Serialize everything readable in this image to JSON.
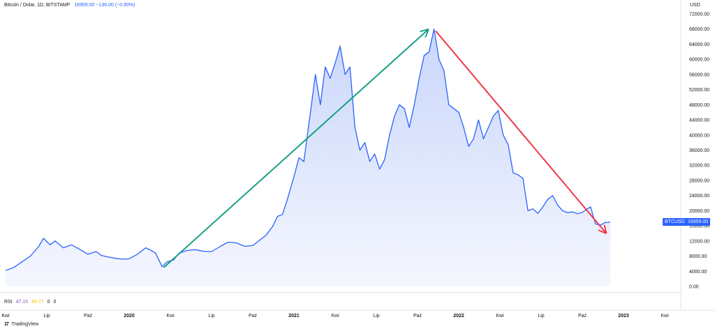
{
  "header": {
    "symbol": "Bitcoin / Dolar, 1D, BITSTAMP",
    "price": "16959.00 −136.00 (−0.80%)"
  },
  "currency": "USD",
  "rsi": {
    "label": "RSI",
    "value1": "47.15",
    "value2": "40.77",
    "value3": "0",
    "value4": "0"
  },
  "badge": {
    "symbol": "BTCUSD",
    "value": "16959.00"
  },
  "brand": {
    "logo": "17",
    "name": "TradingView"
  },
  "colors": {
    "line": "#2962ff",
    "area_top": "#c9d6fb",
    "area_bottom": "#f5f7fe",
    "arrow_up": "#16a085",
    "arrow_down": "#f23645"
  },
  "chart_data": {
    "type": "area",
    "title": "Bitcoin / Dolar, 1D, BITSTAMP",
    "xlabel": "",
    "ylabel": "",
    "ylim": [
      0,
      72000
    ],
    "y_ticks": [
      "72000.00",
      "68000.00",
      "64000.00",
      "60000.00",
      "56000.00",
      "52000.00",
      "48000.00",
      "44000.00",
      "40000.00",
      "36000.00",
      "32000.00",
      "28000.00",
      "24000.00",
      "20000.00",
      "16000.00",
      "12000.00",
      "8000.00",
      "4000.00",
      "0.00"
    ],
    "x_ticks": [
      {
        "label": "Kwi",
        "t": 2019.25,
        "major": false
      },
      {
        "label": "Lip",
        "t": 2019.5,
        "major": false
      },
      {
        "label": "Paź",
        "t": 2019.75,
        "major": false
      },
      {
        "label": "2020",
        "t": 2020.0,
        "major": true
      },
      {
        "label": "Kwi",
        "t": 2020.25,
        "major": false
      },
      {
        "label": "Lip",
        "t": 2020.5,
        "major": false
      },
      {
        "label": "Paź",
        "t": 2020.75,
        "major": false
      },
      {
        "label": "2021",
        "t": 2021.0,
        "major": true
      },
      {
        "label": "Kwi",
        "t": 2021.25,
        "major": false
      },
      {
        "label": "Lip",
        "t": 2021.5,
        "major": false
      },
      {
        "label": "Paź",
        "t": 2021.75,
        "major": false
      },
      {
        "label": "2022",
        "t": 2022.0,
        "major": true
      },
      {
        "label": "Kwi",
        "t": 2022.25,
        "major": false
      },
      {
        "label": "Lip",
        "t": 2022.5,
        "major": false
      },
      {
        "label": "Paź",
        "t": 2022.75,
        "major": false
      },
      {
        "label": "2023",
        "t": 2023.0,
        "major": true
      },
      {
        "label": "Kwi",
        "t": 2023.25,
        "major": false
      }
    ],
    "series": [
      {
        "values": [
          [
            2019.25,
            4200
          ],
          [
            2019.3,
            5000
          ],
          [
            2019.35,
            6500
          ],
          [
            2019.4,
            8000
          ],
          [
            2019.45,
            10500
          ],
          [
            2019.48,
            12700
          ],
          [
            2019.52,
            11000
          ],
          [
            2019.55,
            12000
          ],
          [
            2019.6,
            10200
          ],
          [
            2019.65,
            11000
          ],
          [
            2019.7,
            9800
          ],
          [
            2019.75,
            8500
          ],
          [
            2019.8,
            9200
          ],
          [
            2019.83,
            8200
          ],
          [
            2019.87,
            7800
          ],
          [
            2019.92,
            7400
          ],
          [
            2019.96,
            7200
          ],
          [
            2020.0,
            7300
          ],
          [
            2020.05,
            8500
          ],
          [
            2020.1,
            10200
          ],
          [
            2020.13,
            9600
          ],
          [
            2020.16,
            8800
          ],
          [
            2020.2,
            5200
          ],
          [
            2020.23,
            6500
          ],
          [
            2020.27,
            7000
          ],
          [
            2020.3,
            8700
          ],
          [
            2020.35,
            9500
          ],
          [
            2020.4,
            9700
          ],
          [
            2020.45,
            9300
          ],
          [
            2020.5,
            9200
          ],
          [
            2020.55,
            10500
          ],
          [
            2020.6,
            11700
          ],
          [
            2020.65,
            11500
          ],
          [
            2020.7,
            10600
          ],
          [
            2020.75,
            10800
          ],
          [
            2020.8,
            12500
          ],
          [
            2020.83,
            13500
          ],
          [
            2020.87,
            15800
          ],
          [
            2020.9,
            18500
          ],
          [
            2020.93,
            19000
          ],
          [
            2020.96,
            23000
          ],
          [
            2021.0,
            29000
          ],
          [
            2021.03,
            34000
          ],
          [
            2021.06,
            33000
          ],
          [
            2021.1,
            46000
          ],
          [
            2021.13,
            56000
          ],
          [
            2021.16,
            48000
          ],
          [
            2021.19,
            58000
          ],
          [
            2021.22,
            55000
          ],
          [
            2021.25,
            59000
          ],
          [
            2021.28,
            63500
          ],
          [
            2021.31,
            56000
          ],
          [
            2021.34,
            58000
          ],
          [
            2021.37,
            42000
          ],
          [
            2021.4,
            36000
          ],
          [
            2021.43,
            38000
          ],
          [
            2021.46,
            33000
          ],
          [
            2021.49,
            35000
          ],
          [
            2021.52,
            31000
          ],
          [
            2021.55,
            33500
          ],
          [
            2021.58,
            40000
          ],
          [
            2021.61,
            45000
          ],
          [
            2021.64,
            48000
          ],
          [
            2021.67,
            47000
          ],
          [
            2021.7,
            42000
          ],
          [
            2021.73,
            48000
          ],
          [
            2021.76,
            55000
          ],
          [
            2021.79,
            61000
          ],
          [
            2021.82,
            62000
          ],
          [
            2021.85,
            68000
          ],
          [
            2021.88,
            60000
          ],
          [
            2021.91,
            57000
          ],
          [
            2021.94,
            48000
          ],
          [
            2021.97,
            47000
          ],
          [
            2022.0,
            46000
          ],
          [
            2022.03,
            42000
          ],
          [
            2022.06,
            37000
          ],
          [
            2022.09,
            39000
          ],
          [
            2022.12,
            44000
          ],
          [
            2022.15,
            39000
          ],
          [
            2022.18,
            42000
          ],
          [
            2022.21,
            45000
          ],
          [
            2022.24,
            46500
          ],
          [
            2022.27,
            40000
          ],
          [
            2022.3,
            37500
          ],
          [
            2022.33,
            30000
          ],
          [
            2022.36,
            29500
          ],
          [
            2022.39,
            28500
          ],
          [
            2022.42,
            20000
          ],
          [
            2022.45,
            20500
          ],
          [
            2022.48,
            19300
          ],
          [
            2022.51,
            21000
          ],
          [
            2022.54,
            23000
          ],
          [
            2022.57,
            24000
          ],
          [
            2022.6,
            21500
          ],
          [
            2022.63,
            20000
          ],
          [
            2022.66,
            19500
          ],
          [
            2022.69,
            19700
          ],
          [
            2022.72,
            19200
          ],
          [
            2022.75,
            19600
          ],
          [
            2022.78,
            20500
          ],
          [
            2022.8,
            21000
          ],
          [
            2022.83,
            16500
          ],
          [
            2022.86,
            16200
          ],
          [
            2022.89,
            16900
          ],
          [
            2022.92,
            16959
          ]
        ]
      }
    ],
    "annotations": [
      {
        "type": "arrow",
        "from": [
          2020.21,
          5000
        ],
        "to": [
          2021.81,
          67700
        ]
      },
      {
        "type": "arrow",
        "from": [
          2021.86,
          67500
        ],
        "to": [
          2022.89,
          14300
        ]
      }
    ],
    "grid": false,
    "legend": "none"
  }
}
